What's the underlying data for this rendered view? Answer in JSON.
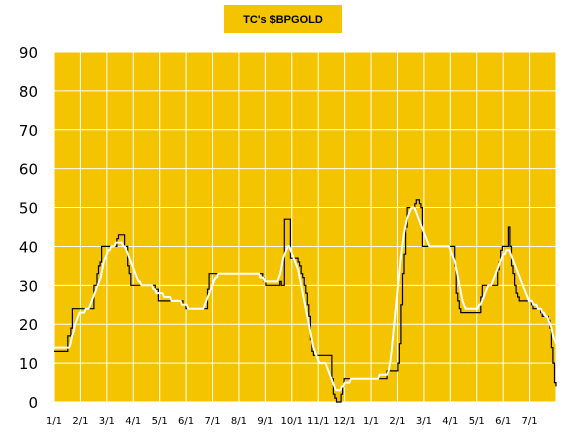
{
  "chart_data": {
    "type": "line",
    "title": "TC's $BPGOLD",
    "xlabel": "",
    "ylabel": "",
    "ylim": [
      0,
      90
    ],
    "yticks": [
      0,
      10,
      20,
      30,
      40,
      50,
      60,
      70,
      80,
      90
    ],
    "xtick_labels": [
      "1/1",
      "2/1",
      "3/1",
      "4/1",
      "5/1",
      "6/1",
      "7/1",
      "8/1",
      "9/1",
      "10/1",
      "11/1",
      "12/1",
      "1/1",
      "2/1",
      "3/1",
      "4/1",
      "5/1",
      "6/1",
      "7/1"
    ],
    "grid": true,
    "colors": {
      "plot_background": "#f5c400",
      "grid": "#ffffff",
      "price_line": "#000000",
      "average_line": "#ffffff",
      "title_box": "#f5c400",
      "text": "#000000"
    },
    "series": [
      {
        "style": "step",
        "values": [
          13,
          13,
          13,
          13,
          13,
          13,
          13,
          13,
          13,
          17,
          17,
          19,
          24,
          24,
          24,
          24,
          24,
          24,
          24,
          24,
          24,
          24,
          24,
          24,
          24,
          24,
          30,
          30,
          33,
          35,
          36,
          40,
          40,
          40,
          40,
          40,
          40,
          40,
          40,
          40,
          40,
          42,
          43,
          43,
          43,
          43,
          40,
          40,
          35,
          33,
          30,
          30,
          30,
          30,
          30,
          30,
          30,
          30,
          30,
          30,
          30,
          30,
          30,
          30,
          30,
          30,
          29,
          29,
          26,
          26,
          26,
          26,
          26,
          26,
          26,
          26,
          26,
          26,
          26,
          26,
          26,
          26,
          26,
          26,
          25,
          25,
          24,
          24,
          24,
          24,
          24,
          24,
          24,
          24,
          24,
          24,
          24,
          24,
          24,
          24,
          29,
          33,
          33,
          33,
          33,
          33,
          33,
          33,
          33,
          33,
          33,
          33,
          33,
          33,
          33,
          33,
          33,
          33,
          33,
          33,
          33,
          33,
          33,
          33,
          33,
          33,
          33,
          33,
          33,
          33,
          33,
          33,
          33,
          33,
          33,
          33,
          32,
          31,
          30,
          30,
          30,
          30,
          30,
          30,
          30,
          30,
          30,
          31,
          30,
          30,
          47,
          47,
          47,
          47,
          37,
          37,
          37,
          37,
          37,
          36,
          35,
          33,
          32,
          30,
          28,
          25,
          22,
          16,
          13,
          12,
          12,
          12,
          12,
          12,
          12,
          12,
          12,
          12,
          12,
          12,
          12,
          6,
          2,
          1,
          0,
          0,
          0,
          2,
          4,
          6,
          6,
          6,
          6,
          6,
          6,
          6,
          6,
          6,
          6,
          6,
          6,
          6,
          6,
          6,
          6,
          6,
          6,
          6,
          6,
          6,
          6,
          6,
          6,
          6,
          6,
          6,
          6,
          8,
          8,
          8,
          8,
          8,
          8,
          8,
          10,
          15,
          25,
          33,
          38,
          45,
          50,
          50,
          50,
          50,
          50,
          51,
          52,
          52,
          51,
          50,
          40,
          40,
          40,
          40,
          40,
          40,
          40,
          40,
          40,
          40,
          40,
          40,
          40,
          40,
          40,
          40,
          40,
          40,
          40,
          40,
          40,
          35,
          28,
          26,
          24,
          23,
          23,
          23,
          23,
          23,
          23,
          23,
          23,
          23,
          23,
          23,
          23,
          23,
          27,
          30,
          30,
          30,
          30,
          30,
          30,
          30,
          30,
          30,
          30,
          34,
          36,
          39,
          40,
          40,
          40,
          40,
          45,
          40,
          35,
          33,
          30,
          28,
          27,
          26,
          26,
          26,
          26,
          26,
          26,
          26,
          26,
          25,
          24,
          24,
          24,
          24,
          24,
          23,
          22,
          22,
          22,
          22,
          21,
          19,
          14,
          10,
          5,
          4
        ]
      },
      {
        "style": "smoothed",
        "values": [
          14,
          14,
          14,
          14,
          14,
          14,
          14,
          14,
          14,
          14,
          14,
          15,
          17,
          18,
          20,
          21,
          22,
          23,
          23,
          23,
          23,
          24,
          24,
          24,
          25,
          26,
          27,
          28,
          29,
          30,
          31,
          32,
          34,
          36,
          37,
          38,
          39,
          39,
          40,
          40,
          40,
          41,
          41,
          41,
          41,
          41,
          40,
          40,
          39,
          38,
          37,
          36,
          35,
          34,
          33,
          32,
          31,
          31,
          30,
          30,
          30,
          30,
          30,
          30,
          30,
          30,
          29,
          29,
          28,
          28,
          28,
          28,
          28,
          27,
          27,
          27,
          27,
          27,
          26,
          26,
          26,
          26,
          26,
          26,
          26,
          25,
          25,
          25,
          25,
          24,
          24,
          24,
          24,
          24,
          24,
          24,
          24,
          24,
          24,
          24,
          25,
          26,
          27,
          28,
          29,
          30,
          31,
          32,
          32,
          33,
          33,
          33,
          33,
          33,
          33,
          33,
          33,
          33,
          33,
          33,
          33,
          33,
          33,
          33,
          33,
          33,
          33,
          33,
          33,
          33,
          33,
          33,
          33,
          33,
          33,
          33,
          33,
          32,
          32,
          32,
          31,
          31,
          31,
          31,
          31,
          31,
          31,
          31,
          31,
          32,
          33,
          35,
          37,
          38,
          39,
          40,
          40,
          39,
          38,
          37,
          36,
          35,
          34,
          32,
          30,
          28,
          26,
          24,
          22,
          20,
          18,
          16,
          14,
          13,
          12,
          11,
          10,
          10,
          10,
          10,
          10,
          9,
          8,
          7,
          6,
          5,
          4,
          3,
          3,
          3,
          3,
          4,
          4,
          5,
          5,
          5,
          5,
          6,
          6,
          6,
          6,
          6,
          6,
          6,
          6,
          6,
          6,
          6,
          6,
          6,
          6,
          6,
          6,
          6,
          6,
          6,
          7,
          7,
          7,
          7,
          7,
          7,
          8,
          10,
          13,
          17,
          21,
          25,
          29,
          33,
          37,
          40,
          43,
          45,
          47,
          48,
          49,
          50,
          50,
          50,
          49,
          48,
          47,
          46,
          45,
          44,
          43,
          42,
          41,
          40,
          40,
          40,
          40,
          40,
          40,
          40,
          40,
          40,
          40,
          40,
          40,
          40,
          40,
          39,
          38,
          37,
          36,
          34,
          32,
          30,
          28,
          26,
          25,
          24,
          24,
          24,
          24,
          24,
          24,
          24,
          24,
          24,
          25,
          25,
          26,
          27,
          28,
          29,
          30,
          30,
          30,
          31,
          32,
          33,
          34,
          35,
          36,
          37,
          38,
          38,
          39,
          39,
          39,
          38,
          37,
          36,
          35,
          34,
          33,
          32,
          31,
          30,
          29,
          28,
          27,
          26,
          26,
          26,
          25,
          25,
          25,
          24,
          24,
          24,
          23,
          23,
          22,
          22,
          21,
          20,
          19,
          17,
          16,
          15
        ]
      }
    ]
  }
}
